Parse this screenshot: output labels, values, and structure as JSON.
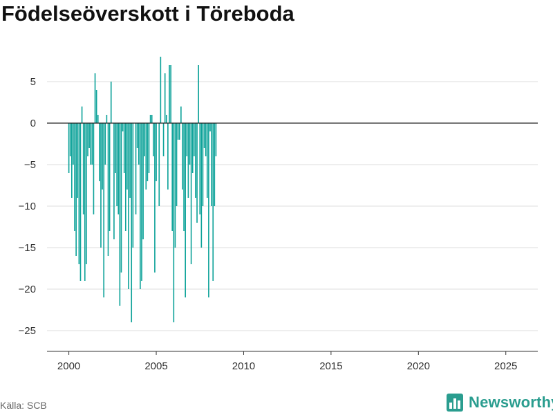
{
  "title": "Födelseöverskott i Töreboda",
  "source": "Källa: SCB",
  "brand": {
    "name": "Newsworthy",
    "logo_icon": "bar-chart-logo-icon",
    "color": "#2a9d8f"
  },
  "chart_data": {
    "type": "bar",
    "title": "Födelseöverskott i Töreboda",
    "xlabel": "",
    "ylabel": "",
    "bar_color": "#0fa39a",
    "grid": true,
    "ylim": [
      -27.5,
      9
    ],
    "xlim": [
      1998.75,
      2026.83
    ],
    "y_ticks": [
      5,
      0,
      -5,
      -10,
      -15,
      -20,
      -25
    ],
    "y_tick_labels": [
      "5",
      "0",
      "−5",
      "−10",
      "−15",
      "−20",
      "−25"
    ],
    "x_ticks": [
      2000,
      2005,
      2010,
      2015,
      2020,
      2025
    ],
    "x_tick_labels": [
      "2000",
      "2005",
      "2010",
      "2015",
      "2020",
      "2025"
    ],
    "frequency": "monthly",
    "start_month": "2000-01",
    "values": [
      -6,
      -4,
      -9,
      -5,
      -13,
      -16,
      -9,
      -17,
      -19,
      2,
      -11,
      -19,
      -17,
      -4,
      -3,
      -5,
      -5,
      -11,
      6,
      4,
      1,
      -7,
      -15,
      -8,
      -21,
      -5,
      1,
      -16,
      -13,
      5,
      0,
      -14,
      -6,
      -10,
      -11,
      -22,
      -18,
      -1,
      -6,
      -13,
      -8,
      -20,
      -9,
      -24,
      -15,
      0,
      -11,
      -3,
      -5,
      -20,
      -19,
      -14,
      -4,
      -8,
      -7,
      -6,
      1,
      1,
      -4,
      -18,
      -7,
      0,
      -10,
      8,
      0,
      -4,
      6,
      1,
      -8,
      7,
      7,
      -13,
      -24,
      -15,
      -10,
      -2,
      -2,
      2,
      -8,
      -13,
      -21,
      -4,
      -9,
      -5,
      -17,
      -6,
      -4,
      -9,
      -12,
      7,
      -11,
      -15,
      -10,
      -3,
      -4,
      -9,
      -21,
      -1,
      -10,
      -19,
      -10,
      -4
    ]
  }
}
